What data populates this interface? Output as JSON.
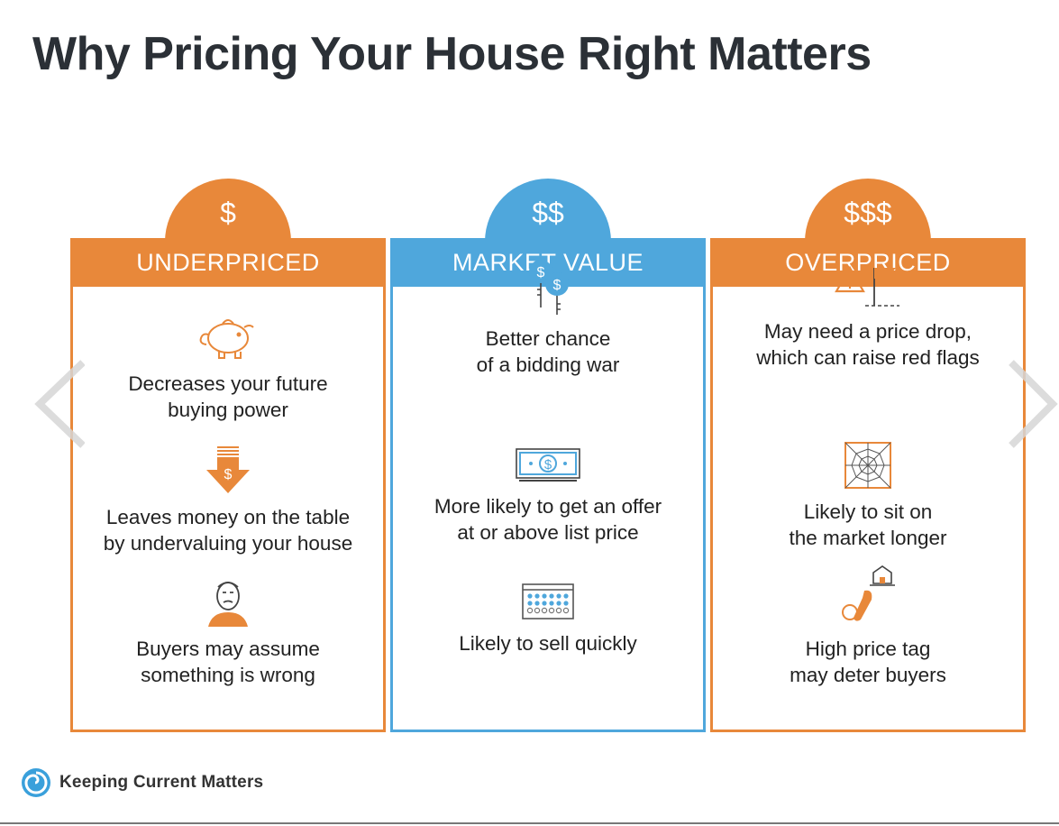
{
  "title": "Why Pricing Your House Right Matters",
  "colors": {
    "orange": "#e8883a",
    "blue": "#4fa7dc",
    "title": "#2b3036"
  },
  "columns": [
    {
      "symbol": "$",
      "heading": "UNDERPRICED",
      "color": "orange",
      "items": [
        {
          "icon": "piggy-bank-icon",
          "text": "Decreases your future\nbuying power"
        },
        {
          "icon": "down-arrow-dollar-icon",
          "text": "Leaves money on the table\nby undervaluing your house"
        },
        {
          "icon": "worried-person-icon",
          "text": "Buyers may assume\nsomething is wrong"
        }
      ]
    },
    {
      "symbol": "$$",
      "heading": "MARKET VALUE",
      "color": "blue",
      "items": [
        {
          "icon": "bidding-paddles-icon",
          "text": "Better chance\nof a bidding war"
        },
        {
          "icon": "dollar-bill-icon",
          "text": "More likely to get an offer\nat or above list price"
        },
        {
          "icon": "calendar-icon",
          "text": "Likely to sell quickly"
        }
      ]
    },
    {
      "symbol": "$$$",
      "heading": "OVERPRICED",
      "color": "orange",
      "items": [
        {
          "icon": "warning-flag-icon",
          "text": "May need a price drop,\nwhich can raise red flags"
        },
        {
          "icon": "cobweb-icon",
          "text": "Likely to sit on\nthe market longer"
        },
        {
          "icon": "house-price-tag-icon",
          "text": "High price tag\nmay deter buyers"
        }
      ]
    }
  ],
  "logo": {
    "text": "Keeping Current Matters"
  },
  "nav": {
    "prev_icon": "chevron-left-icon",
    "next_icon": "chevron-right-icon"
  }
}
